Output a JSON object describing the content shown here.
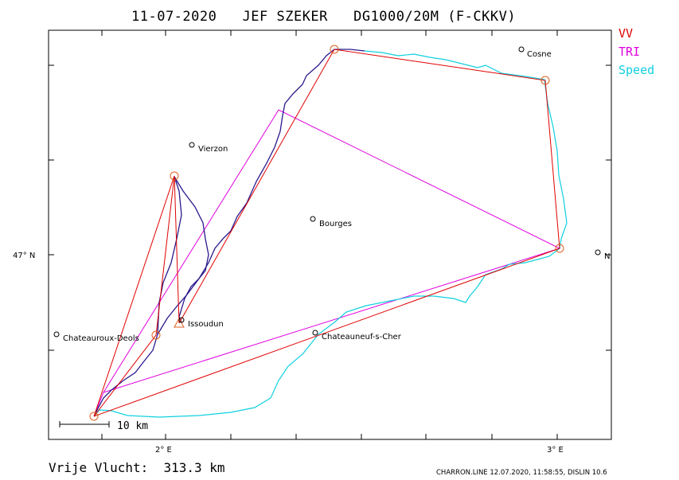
{
  "title": "11-07-2020   JEF SZEKER   DG1000/20M (F-CKKV)",
  "legend": [
    {
      "label": "VV",
      "color": "#e00000"
    },
    {
      "label": "TRI",
      "color": "#e000e0"
    },
    {
      "label": "Speed",
      "color": "#10d0e0"
    }
  ],
  "axes": {
    "lat_label": "47° N",
    "lon_labels": [
      "2° E",
      "3° E"
    ]
  },
  "map": {
    "towns": [
      "Cosne",
      "Vierzon",
      "Bourges",
      "Issoudun",
      "Chateauroux-Deols",
      "Chateauneuf-s-Cher",
      "N"
    ],
    "scale_label": "10 km",
    "track_color": "#2a1a8c",
    "turnpoint_color": "#e06020"
  },
  "footer": {
    "distance": "Vrije Vlucht:  313.3 km",
    "info": "CHARRON.LINE 12.07.2020, 11:58:55, DISLIN 10.6"
  }
}
